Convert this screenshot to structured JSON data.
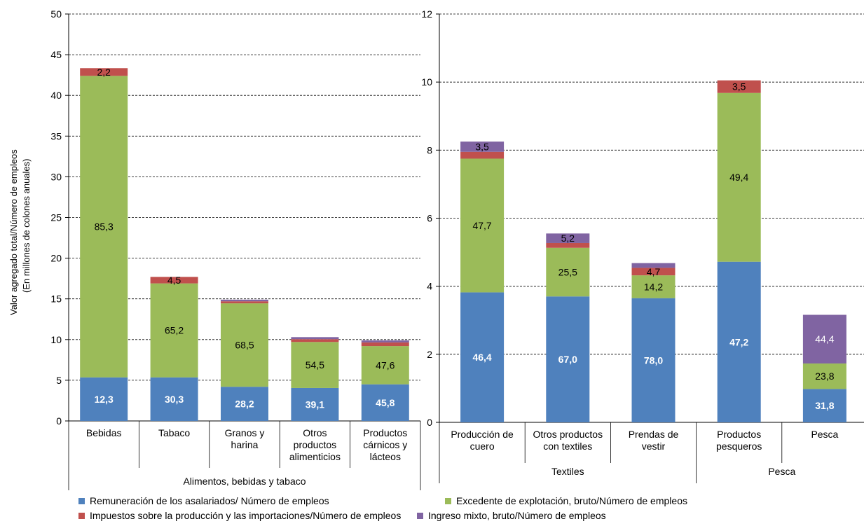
{
  "colors": {
    "remuneracion": "#4F81BD",
    "excedente": "#9BBB59",
    "impuestos": "#C0504D",
    "mixto": "#8064A2"
  },
  "left_axis_title_line1": "Valor agregado total/Número de empleos",
  "left_axis_title_line2": "(En millones de colones anuales)",
  "legend": [
    {
      "key": "remuneracion",
      "label": "Remuneración de los asalariados/ Número de empleos"
    },
    {
      "key": "excedente",
      "label": "Excedente de explotación, bruto/Número de empleos"
    },
    {
      "key": "impuestos",
      "label": "Impuestos sobre la producción y las importaciones/Número de empleos"
    },
    {
      "key": "mixto",
      "label": "Ingreso mixto, bruto/Número de empleos"
    }
  ],
  "chart_data": [
    {
      "type": "bar",
      "stacked": true,
      "ylim": [
        0,
        50
      ],
      "yticks": [
        0,
        5,
        10,
        15,
        20,
        25,
        30,
        35,
        40,
        45,
        50
      ],
      "grid": true,
      "group_label": "Alimentos, bebidas y tabaco",
      "categories": [
        [
          "Bebidas"
        ],
        [
          "Tabaco"
        ],
        [
          "Granos y",
          "harina"
        ],
        [
          "Otros",
          "productos",
          "alimenticios"
        ],
        [
          "Productos",
          "cárnicos y",
          "lácteos"
        ]
      ],
      "series": [
        {
          "key": "remuneracion",
          "name": "Remuneración de los asalariados/ Número de empleos",
          "values": [
            5.35,
            5.35,
            4.2,
            4.05,
            4.5
          ],
          "labels": [
            "12,3",
            "30,3",
            "28,2",
            "39,1",
            "45,8"
          ]
        },
        {
          "key": "excedente",
          "name": "Excedente de explotación, bruto/Número de empleos",
          "values": [
            37.05,
            11.55,
            10.25,
            5.65,
            4.7
          ],
          "labels": [
            "85,3",
            "65,2",
            "68,5",
            "54,5",
            "47,6"
          ]
        },
        {
          "key": "impuestos",
          "name": "Impuestos sobre la producción y las importaciones/Número de empleos",
          "values": [
            0.95,
            0.8,
            0.25,
            0.35,
            0.45
          ],
          "labels": [
            "2,2",
            "4,5",
            "",
            "",
            ""
          ]
        },
        {
          "key": "mixto",
          "name": "Ingreso mixto, bruto/Número de empleos",
          "values": [
            0.0,
            0.0,
            0.2,
            0.25,
            0.25
          ],
          "labels": [
            "",
            "",
            "",
            "",
            ""
          ]
        }
      ]
    },
    {
      "type": "bar",
      "stacked": true,
      "ylim": [
        0,
        12
      ],
      "yticks": [
        0,
        2,
        4,
        6,
        8,
        10,
        12
      ],
      "grid": true,
      "categories": [
        [
          "Producción de",
          "cuero"
        ],
        [
          "Otros productos",
          "con textiles"
        ],
        [
          "Prendas de",
          "vestir"
        ],
        [
          "Productos",
          "pesqueros"
        ],
        [
          "Pesca"
        ]
      ],
      "groups": [
        {
          "label": "Textiles",
          "from": 0,
          "to": 2
        },
        {
          "label": "Pesca",
          "from": 3,
          "to": 4
        }
      ],
      "series": [
        {
          "key": "remuneracion",
          "name": "Remuneración de los asalariados/ Número de empleos",
          "values": [
            3.82,
            3.7,
            3.65,
            4.72,
            0.98
          ],
          "labels": [
            "46,4",
            "67,0",
            "78,0",
            "47,2",
            "31,8"
          ]
        },
        {
          "key": "excedente",
          "name": "Excedente de explotación, bruto/Número de empleos",
          "values": [
            3.93,
            1.43,
            0.67,
            4.96,
            0.75
          ],
          "labels": [
            "47,7",
            "25,5",
            "14,2",
            "49,4",
            "23,8"
          ]
        },
        {
          "key": "impuestos",
          "name": "Impuestos sobre la producción y las importaciones/Número de empleos",
          "values": [
            0.2,
            0.14,
            0.22,
            0.37,
            0.0
          ],
          "labels": [
            "",
            "",
            "4,7",
            "3,5",
            ""
          ]
        },
        {
          "key": "mixto",
          "name": "Ingreso mixto, bruto/Número de empleos",
          "values": [
            0.3,
            0.28,
            0.14,
            0.0,
            1.43
          ],
          "labels": [
            "3,5",
            "5,2",
            "",
            "",
            "44,4"
          ]
        }
      ]
    }
  ]
}
